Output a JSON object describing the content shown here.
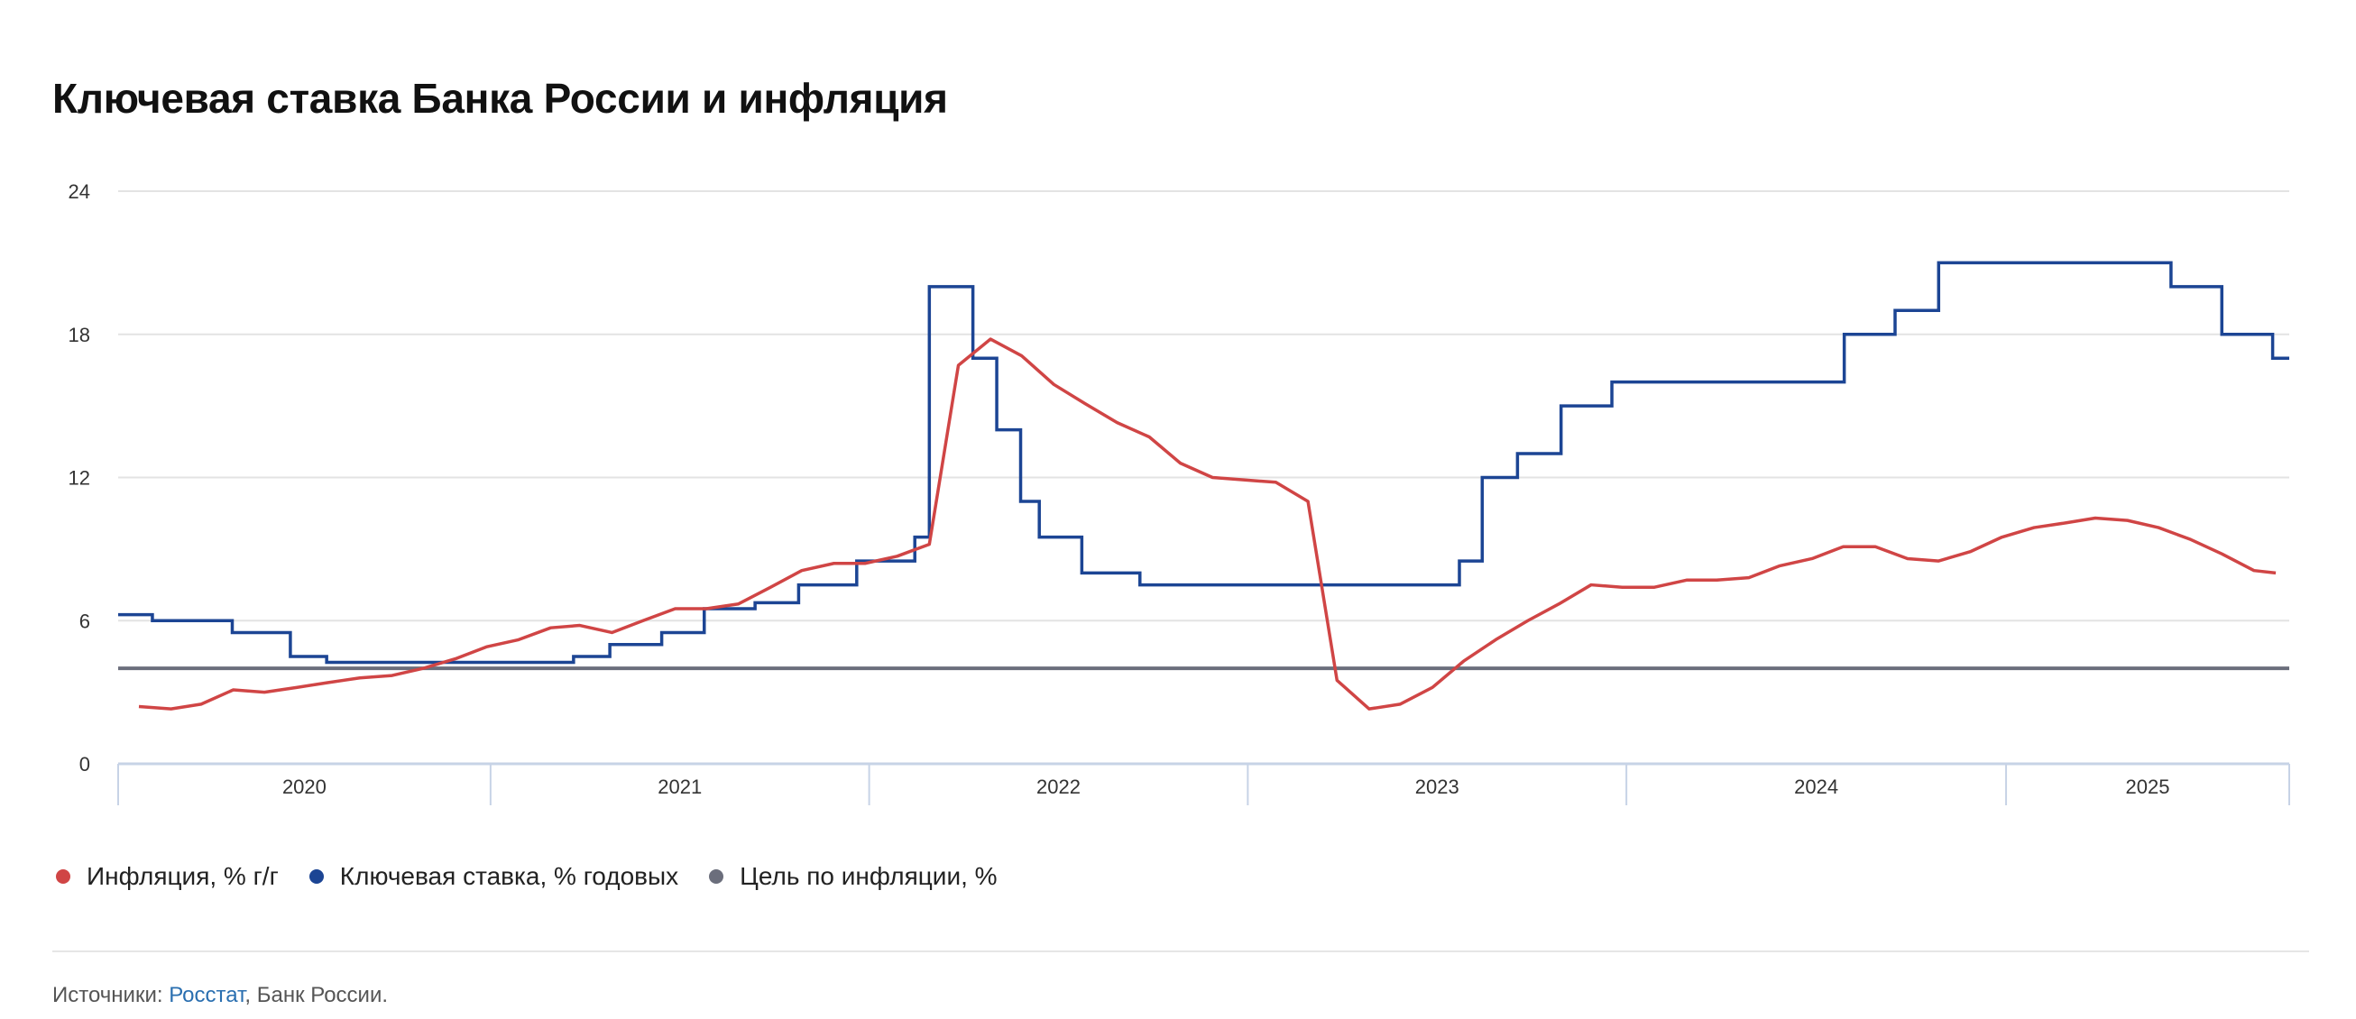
{
  "chart_data": {
    "type": "line",
    "title": "Ключевая ставка Банка России и инфляция",
    "xlabel": "",
    "ylabel": "",
    "ylim": [
      0,
      24
    ],
    "yticks": [
      "0",
      "6",
      "12",
      "18",
      "24"
    ],
    "x_range": [
      "2020-01-08",
      "2025-10-01"
    ],
    "x_tick_labels": [
      "2020",
      "2021",
      "2022",
      "2023",
      "2024",
      "2025"
    ],
    "grid": true,
    "legend_position": "bottom-left",
    "series": [
      {
        "name": "Инфляция, % г/г",
        "color": "#d04545",
        "style": "line",
        "points": [
          [
            "2020-01-28",
            2.4
          ],
          [
            "2020-02-28",
            2.3
          ],
          [
            "2020-03-28",
            2.5
          ],
          [
            "2020-04-28",
            3.1
          ],
          [
            "2020-05-28",
            3.0
          ],
          [
            "2020-06-28",
            3.2
          ],
          [
            "2020-07-28",
            3.4
          ],
          [
            "2020-08-28",
            3.6
          ],
          [
            "2020-09-28",
            3.7
          ],
          [
            "2020-10-28",
            4.0
          ],
          [
            "2020-11-28",
            4.4
          ],
          [
            "2020-12-28",
            4.9
          ],
          [
            "2021-01-28",
            5.2
          ],
          [
            "2021-02-28",
            5.7
          ],
          [
            "2021-03-28",
            5.8
          ],
          [
            "2021-04-28",
            5.5
          ],
          [
            "2021-05-28",
            6.0
          ],
          [
            "2021-06-28",
            6.5
          ],
          [
            "2021-07-28",
            6.5
          ],
          [
            "2021-08-28",
            6.7
          ],
          [
            "2021-09-28",
            7.4
          ],
          [
            "2021-10-28",
            8.1
          ],
          [
            "2021-11-28",
            8.4
          ],
          [
            "2021-12-28",
            8.4
          ],
          [
            "2022-01-28",
            8.7
          ],
          [
            "2022-02-28",
            9.2
          ],
          [
            "2022-03-28",
            16.7
          ],
          [
            "2022-04-28",
            17.8
          ],
          [
            "2022-05-28",
            17.1
          ],
          [
            "2022-06-28",
            15.9
          ],
          [
            "2022-07-28",
            15.1
          ],
          [
            "2022-08-28",
            14.3
          ],
          [
            "2022-09-28",
            13.7
          ],
          [
            "2022-10-28",
            12.6
          ],
          [
            "2022-11-28",
            12.0
          ],
          [
            "2022-12-28",
            11.9
          ],
          [
            "2023-01-28",
            11.8
          ],
          [
            "2023-02-28",
            11.0
          ],
          [
            "2023-03-28",
            3.5
          ],
          [
            "2023-04-28",
            2.3
          ],
          [
            "2023-05-28",
            2.5
          ],
          [
            "2023-06-28",
            3.2
          ],
          [
            "2023-07-28",
            4.3
          ],
          [
            "2023-08-28",
            5.2
          ],
          [
            "2023-09-28",
            6.0
          ],
          [
            "2023-10-28",
            6.7
          ],
          [
            "2023-11-28",
            7.5
          ],
          [
            "2023-12-28",
            7.4
          ],
          [
            "2024-01-28",
            7.4
          ],
          [
            "2024-02-28",
            7.7
          ],
          [
            "2024-03-28",
            7.7
          ],
          [
            "2024-04-28",
            7.8
          ],
          [
            "2024-05-28",
            8.3
          ],
          [
            "2024-06-28",
            8.6
          ],
          [
            "2024-07-28",
            9.1
          ],
          [
            "2024-08-28",
            9.1
          ],
          [
            "2024-09-28",
            8.6
          ],
          [
            "2024-10-28",
            8.5
          ],
          [
            "2024-11-28",
            8.9
          ],
          [
            "2024-12-28",
            9.5
          ],
          [
            "2025-01-28",
            9.9
          ],
          [
            "2025-02-28",
            10.1
          ],
          [
            "2025-03-28",
            10.3
          ],
          [
            "2025-04-28",
            10.2
          ],
          [
            "2025-05-28",
            9.9
          ],
          [
            "2025-06-28",
            9.4
          ],
          [
            "2025-07-28",
            8.8
          ],
          [
            "2025-08-28",
            8.1
          ],
          [
            "2025-09-18",
            8.0
          ]
        ]
      },
      {
        "name": "Ключевая ставка, % годовых",
        "color": "#1c4594",
        "style": "step",
        "points": [
          [
            "2020-01-08",
            6.25
          ],
          [
            "2020-02-10",
            6.0
          ],
          [
            "2020-04-27",
            5.5
          ],
          [
            "2020-06-22",
            4.5
          ],
          [
            "2020-07-27",
            4.25
          ],
          [
            "2021-03-22",
            4.5
          ],
          [
            "2021-04-26",
            5.0
          ],
          [
            "2021-06-15",
            5.5
          ],
          [
            "2021-07-26",
            6.5
          ],
          [
            "2021-09-13",
            6.75
          ],
          [
            "2021-10-25",
            7.5
          ],
          [
            "2021-12-20",
            8.5
          ],
          [
            "2022-02-14",
            9.5
          ],
          [
            "2022-02-28",
            20.0
          ],
          [
            "2022-04-11",
            17.0
          ],
          [
            "2022-05-04",
            14.0
          ],
          [
            "2022-05-27",
            11.0
          ],
          [
            "2022-06-14",
            9.5
          ],
          [
            "2022-07-25",
            8.0
          ],
          [
            "2022-09-19",
            7.5
          ],
          [
            "2023-07-24",
            8.5
          ],
          [
            "2023-08-15",
            12.0
          ],
          [
            "2023-09-18",
            13.0
          ],
          [
            "2023-10-30",
            15.0
          ],
          [
            "2023-12-18",
            16.0
          ],
          [
            "2024-07-29",
            18.0
          ],
          [
            "2024-09-16",
            19.0
          ],
          [
            "2024-10-28",
            21.0
          ],
          [
            "2025-06-09",
            20.0
          ],
          [
            "2025-07-28",
            18.0
          ],
          [
            "2025-09-15",
            17.0
          ],
          [
            "2025-10-01",
            17.0
          ]
        ]
      },
      {
        "name": "Цель по инфляции, %",
        "color": "#6b6e7c",
        "style": "constant",
        "value": 4
      }
    ]
  },
  "source": {
    "prefix": "Источники: ",
    "link": "Росстат",
    "suffix": ", Банк России."
  }
}
